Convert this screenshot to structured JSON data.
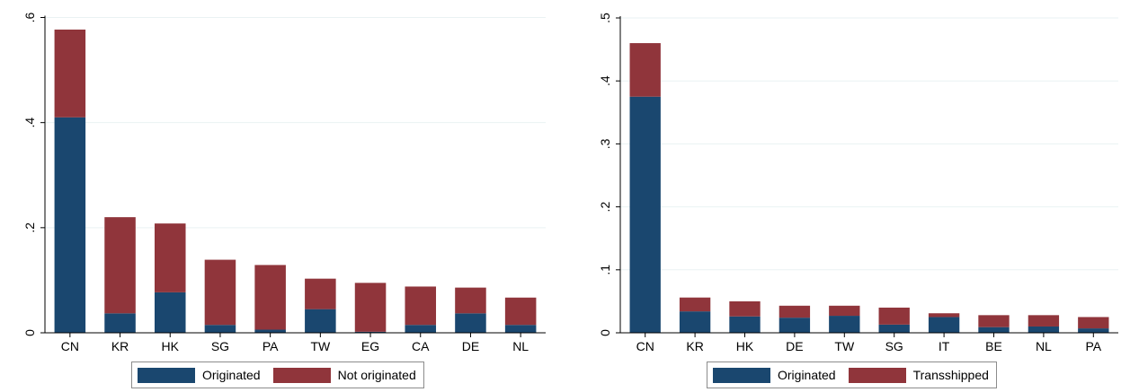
{
  "colors": {
    "originated": "#1a476f",
    "other": "#90353b",
    "grid": "#eaf2f3",
    "axis": "#000000"
  },
  "chart_data": [
    {
      "type": "bar",
      "stacked": true,
      "categories": [
        "CN",
        "KR",
        "HK",
        "SG",
        "PA",
        "TW",
        "EG",
        "CA",
        "DE",
        "NL"
      ],
      "series": [
        {
          "name": "Originated",
          "values": [
            0.41,
            0.037,
            0.077,
            0.015,
            0.006,
            0.045,
            0.002,
            0.015,
            0.037,
            0.015
          ]
        },
        {
          "name": "Not originated",
          "values": [
            0.167,
            0.183,
            0.131,
            0.124,
            0.123,
            0.058,
            0.093,
            0.073,
            0.049,
            0.052
          ]
        }
      ],
      "ylim": [
        0,
        0.6
      ],
      "yticks": [
        0,
        0.2,
        0.4,
        0.6
      ],
      "ytick_labels": [
        "0",
        ".2",
        ".4",
        ".6"
      ],
      "grid": true,
      "legend": "bottom"
    },
    {
      "type": "bar",
      "stacked": true,
      "categories": [
        "CN",
        "KR",
        "HK",
        "DE",
        "TW",
        "SG",
        "IT",
        "BE",
        "NL",
        "PA"
      ],
      "series": [
        {
          "name": "Originated",
          "values": [
            0.375,
            0.034,
            0.026,
            0.024,
            0.027,
            0.013,
            0.025,
            0.009,
            0.01,
            0.007
          ]
        },
        {
          "name": "Transshipped",
          "values": [
            0.085,
            0.022,
            0.024,
            0.019,
            0.016,
            0.027,
            0.006,
            0.019,
            0.018,
            0.018
          ]
        }
      ],
      "ylim": [
        0,
        0.5
      ],
      "yticks": [
        0,
        0.1,
        0.2,
        0.3,
        0.4,
        0.5
      ],
      "ytick_labels": [
        "0",
        ".1",
        ".2",
        ".3",
        ".4",
        ".5"
      ],
      "grid": true,
      "legend": "bottom"
    }
  ]
}
